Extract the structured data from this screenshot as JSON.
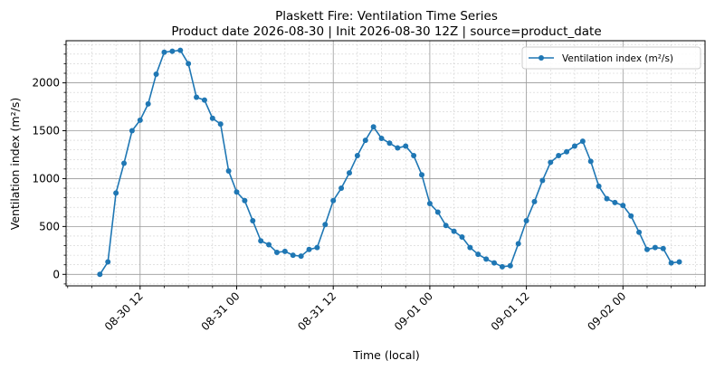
{
  "chart_data": {
    "type": "line",
    "title": "Plaskett Fire: Ventilation Time Series",
    "subtitle": "Product date 2026-08-30 | Init 2026-08-30 12Z | source=product_date",
    "xlabel": "Time (local)",
    "ylabel": "Ventilation index (m²/s)",
    "x_unit": "hours since 2026-08-30 00:00 local",
    "x_range_hours": [
      2.8,
      82.2
    ],
    "ylim": [
      -120,
      2440
    ],
    "x_ticks": [
      {
        "hour": 12,
        "label": "08-30 12"
      },
      {
        "hour": 24,
        "label": "08-31 00"
      },
      {
        "hour": 36,
        "label": "08-31 12"
      },
      {
        "hour": 48,
        "label": "09-01 00"
      },
      {
        "hour": 60,
        "label": "09-01 12"
      },
      {
        "hour": 72,
        "label": "09-02 00"
      }
    ],
    "y_ticks": [
      0,
      500,
      1000,
      1500,
      2000
    ],
    "grid": true,
    "legend_position": "top-right",
    "series": [
      {
        "name": "Ventilation index (m²/s)",
        "color": "#1f77b4",
        "points": [
          [
            7,
            0
          ],
          [
            8,
            130
          ],
          [
            9,
            850
          ],
          [
            10,
            1160
          ],
          [
            11,
            1500
          ],
          [
            12,
            1610
          ],
          [
            13,
            1780
          ],
          [
            14,
            2090
          ],
          [
            15,
            2320
          ],
          [
            16,
            2330
          ],
          [
            17,
            2340
          ],
          [
            18,
            2200
          ],
          [
            19,
            1850
          ],
          [
            20,
            1820
          ],
          [
            21,
            1630
          ],
          [
            22,
            1570
          ],
          [
            23,
            1080
          ],
          [
            24,
            860
          ],
          [
            25,
            770
          ],
          [
            26,
            560
          ],
          [
            27,
            350
          ],
          [
            28,
            310
          ],
          [
            29,
            230
          ],
          [
            30,
            240
          ],
          [
            31,
            200
          ],
          [
            32,
            190
          ],
          [
            33,
            260
          ],
          [
            34,
            280
          ],
          [
            35,
            520
          ],
          [
            36,
            770
          ],
          [
            37,
            900
          ],
          [
            38,
            1060
          ],
          [
            39,
            1240
          ],
          [
            40,
            1400
          ],
          [
            41,
            1540
          ],
          [
            42,
            1420
          ],
          [
            43,
            1370
          ],
          [
            44,
            1320
          ],
          [
            45,
            1340
          ],
          [
            46,
            1240
          ],
          [
            47,
            1040
          ],
          [
            48,
            740
          ],
          [
            49,
            650
          ],
          [
            50,
            510
          ],
          [
            51,
            450
          ],
          [
            52,
            390
          ],
          [
            53,
            280
          ],
          [
            54,
            210
          ],
          [
            55,
            160
          ],
          [
            56,
            120
          ],
          [
            57,
            80
          ],
          [
            58,
            90
          ],
          [
            59,
            320
          ],
          [
            60,
            560
          ],
          [
            61,
            760
          ],
          [
            62,
            980
          ],
          [
            63,
            1170
          ],
          [
            64,
            1240
          ],
          [
            65,
            1280
          ],
          [
            66,
            1340
          ],
          [
            67,
            1390
          ],
          [
            68,
            1180
          ],
          [
            69,
            920
          ],
          [
            70,
            790
          ],
          [
            71,
            750
          ],
          [
            72,
            720
          ],
          [
            73,
            610
          ],
          [
            74,
            440
          ],
          [
            75,
            260
          ],
          [
            76,
            280
          ],
          [
            77,
            270
          ],
          [
            78,
            120
          ],
          [
            79,
            130
          ]
        ]
      }
    ]
  }
}
